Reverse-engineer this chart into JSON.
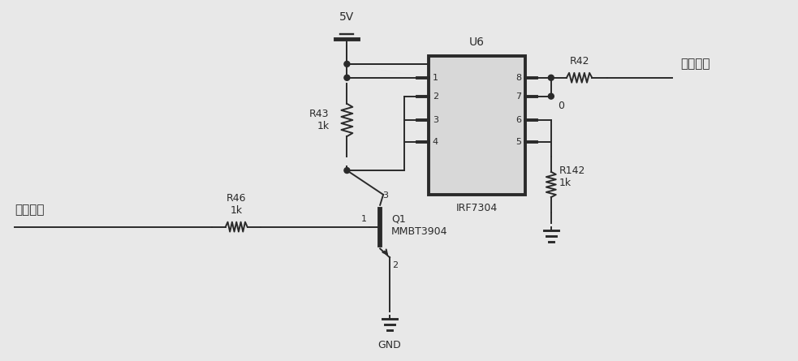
{
  "bg_color": "#e8e8e8",
  "line_color": "#2a2a2a",
  "line_width": 1.4,
  "ic_face": "#d8d8d8",
  "labels": {
    "control_voltage": "控制电压",
    "output_voltage": "输出电压",
    "R46_label": "R46\n1k",
    "R43_label": "R43\n1k",
    "R42_label": "R42",
    "R142_label": "R142\n1k",
    "Q1_label": "Q1\nMMBT3904",
    "U6_label": "U6",
    "IRF7304_label": "IRF7304",
    "GND_label": "GND",
    "5V_label": "5V",
    "pin0_label": "0"
  },
  "figsize": [
    9.83,
    4.45
  ],
  "dpi": 100
}
